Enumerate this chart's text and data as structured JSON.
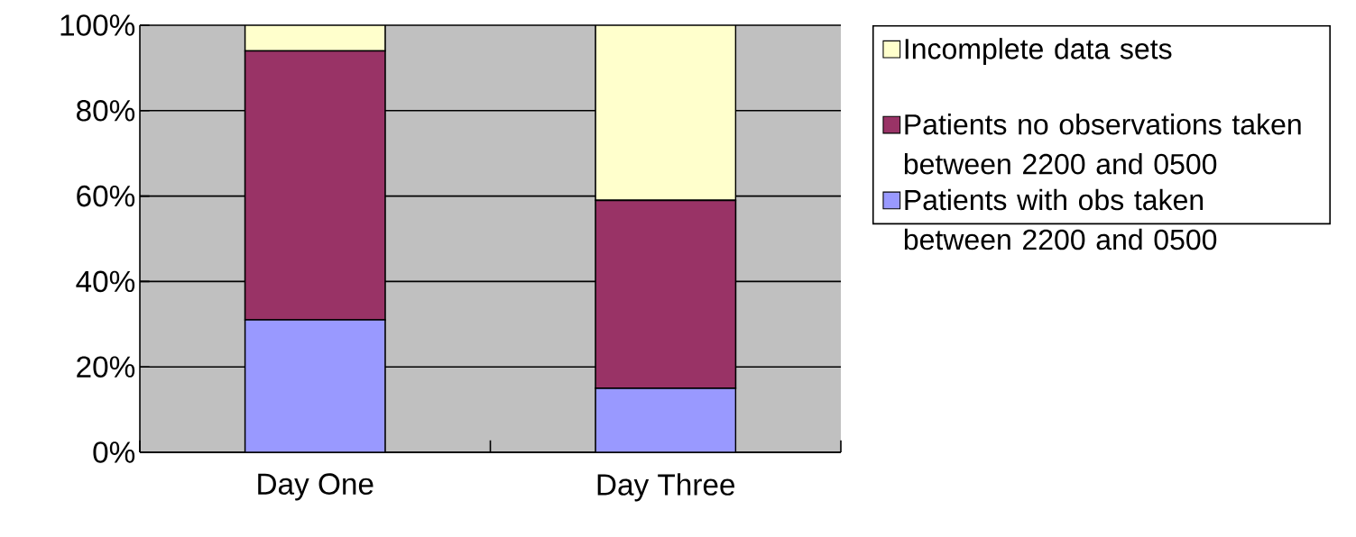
{
  "chart_data": {
    "type": "bar",
    "stacked": true,
    "categories": [
      "Day One",
      "Day Three"
    ],
    "series": [
      {
        "name": "Patients with obs taken between 2200 and 0500",
        "color": "#9999ff",
        "values": [
          31,
          15
        ]
      },
      {
        "name": "Patients no observations taken between 2200 and 0500",
        "color": "#993366",
        "values": [
          63,
          44
        ]
      },
      {
        "name": "Incomplete data sets",
        "color": "#ffffcc",
        "values": [
          6,
          41
        ]
      }
    ],
    "ylim": [
      0,
      100
    ],
    "yticks": [
      {
        "value": 0,
        "label": "0%"
      },
      {
        "value": 20,
        "label": "20%"
      },
      {
        "value": 40,
        "label": "40%"
      },
      {
        "value": 60,
        "label": "60%"
      },
      {
        "value": 80,
        "label": "80%"
      },
      {
        "value": 100,
        "label": "100%"
      }
    ],
    "grid": "y",
    "legend": "right"
  }
}
